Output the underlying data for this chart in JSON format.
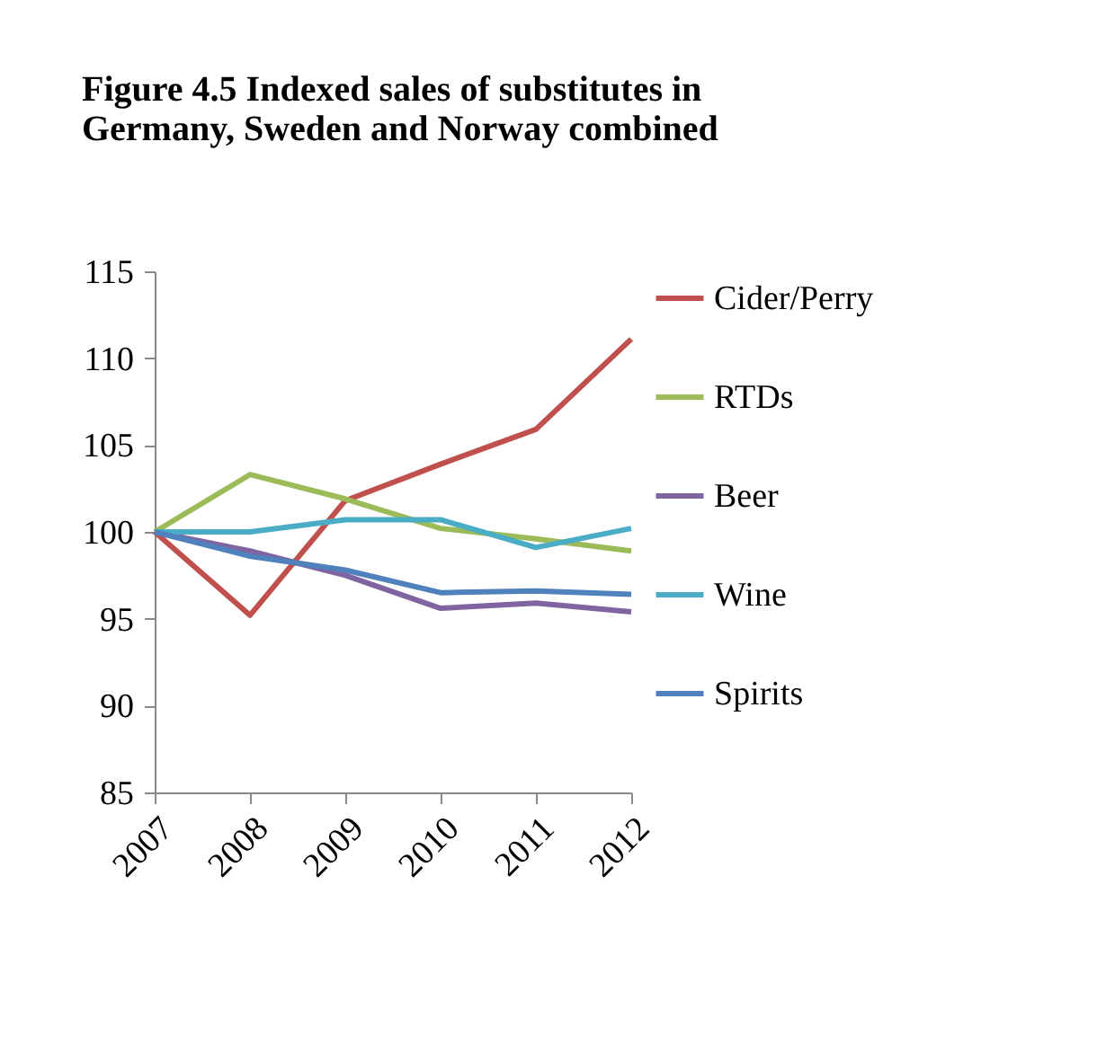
{
  "chart_data": {
    "type": "line",
    "title": [
      "Figure 4.5 Indexed sales of substitutes in",
      "Germany, Sweden and Norway combined"
    ],
    "categories": [
      "2007",
      "2008",
      "2009",
      "2010",
      "2011",
      "2012"
    ],
    "series": [
      {
        "name": "Cider/Perry",
        "color": "#c0504d",
        "values": [
          100,
          95.2,
          101.8,
          103.9,
          105.9,
          111.1
        ]
      },
      {
        "name": "RTDs",
        "color": "#9bbb59",
        "values": [
          100,
          103.3,
          101.9,
          100.2,
          99.6,
          98.9
        ]
      },
      {
        "name": "Beer",
        "color": "#8064a2",
        "values": [
          100,
          98.9,
          97.5,
          95.6,
          95.9,
          95.4
        ]
      },
      {
        "name": "Wine",
        "color": "#4bacc6",
        "values": [
          100,
          100,
          100.7,
          100.7,
          99.1,
          100.2
        ]
      },
      {
        "name": "Spirits",
        "color": "#4f81bd",
        "values": [
          100,
          98.6,
          97.8,
          96.5,
          96.6,
          96.4
        ]
      }
    ],
    "ylim": [
      85,
      115
    ],
    "yticks": [
      85,
      90,
      95,
      100,
      105,
      110,
      115
    ],
    "grid": false,
    "legend": "right",
    "marker": "none",
    "line_style": "solid"
  }
}
